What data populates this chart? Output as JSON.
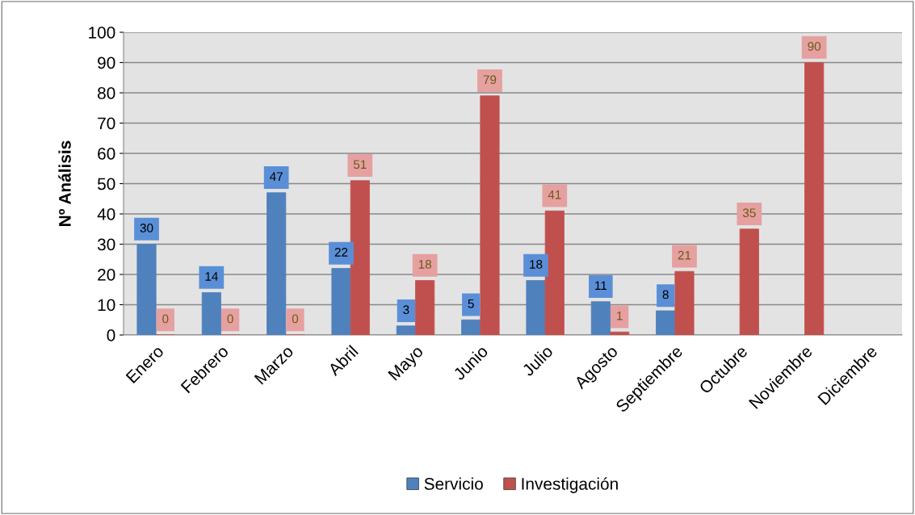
{
  "chart_data": {
    "type": "bar",
    "ylabel": "Nº Análisis",
    "categories": [
      "Enero",
      "Febrero",
      "Marzo",
      "Abril",
      "Mayo",
      "Junio",
      "Julio",
      "Agosto",
      "Septiembre",
      "Octubre",
      "Noviembre",
      "Diciembre"
    ],
    "series": [
      {
        "name": "Servicio",
        "color": "#4f81bd",
        "values": [
          30,
          14,
          47,
          22,
          3,
          5,
          18,
          11,
          8,
          null,
          null,
          null
        ],
        "value_labels": [
          "30",
          "14",
          "47",
          "22",
          "3",
          "5",
          "18",
          "11",
          "8",
          null,
          null,
          null
        ]
      },
      {
        "name": "Investigación",
        "color": "#c0504d",
        "values": [
          0,
          0,
          0,
          51,
          18,
          79,
          41,
          1,
          21,
          35,
          90,
          null
        ],
        "value_labels": [
          "0",
          "0",
          "0",
          "51",
          "18",
          "79",
          "41",
          "1",
          "21",
          "35",
          "90",
          null
        ]
      }
    ],
    "ylim": [
      0,
      100
    ],
    "yticks": [
      0,
      10,
      20,
      30,
      40,
      50,
      60,
      70,
      80,
      90,
      100
    ],
    "grid": "y",
    "legend": "bottom"
  }
}
